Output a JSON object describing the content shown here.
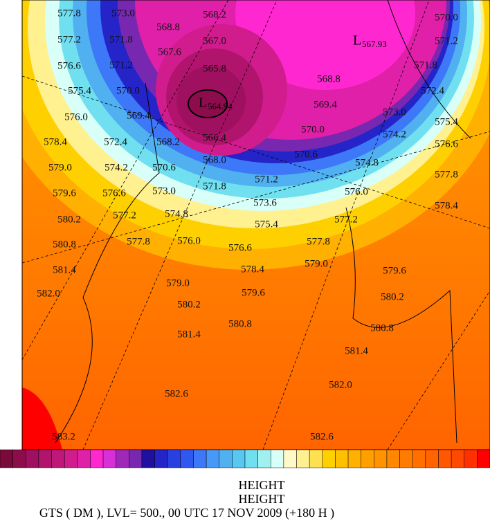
{
  "map": {
    "contour_labels": [
      "577.8",
      "573.0",
      "568.2",
      "570.0",
      "577.2",
      "571.8",
      "568.8",
      "567.0",
      "571.2",
      "576.6",
      "571.2",
      "567.6",
      "565.8",
      "571.8",
      "575.4",
      "570.0",
      "568.8",
      "572.4",
      "576.0",
      "569.4",
      "569.4",
      "573.0",
      "575.4",
      "578.4",
      "572.4",
      "568.2",
      "566.4",
      "570.0",
      "574.2",
      "576.6",
      "579.0",
      "574.2",
      "570.6",
      "568.0",
      "570.6",
      "574.8",
      "577.8",
      "579.6",
      "576.6",
      "573.0",
      "571.8",
      "571.2",
      "576.0",
      "578.4",
      "580.2",
      "577.2",
      "574.8",
      "573.6",
      "575.4",
      "577.2",
      "580.8",
      "577.8",
      "576.0",
      "576.6",
      "577.8",
      "581.4",
      "578.4",
      "579.0",
      "579.6",
      "582.0",
      "579.0",
      "579.6",
      "580.2",
      "580.2",
      "580.8",
      "580.8",
      "581.4",
      "581.4",
      "582.0",
      "582.6",
      "583.2",
      "582.6"
    ],
    "lows": [
      {
        "symbol": "L",
        "value": "567.93"
      },
      {
        "symbol": "L",
        "value": "564.94"
      }
    ],
    "colorbar": [
      "#7a0a3a",
      "#8c0c4c",
      "#a01060",
      "#b0146c",
      "#c01878",
      "#d01c8c",
      "#e020a8",
      "#ff28d0",
      "#d830d8",
      "#a028b8",
      "#7828b0",
      "#2010a0",
      "#2424c8",
      "#2840e0",
      "#3058f0",
      "#3c78f8",
      "#4898f8",
      "#50b0f0",
      "#58c8f0",
      "#70e0f0",
      "#a0f0f0",
      "#d8fff8",
      "#fff8c8",
      "#fff090",
      "#ffe050",
      "#ffd000",
      "#ffc000",
      "#ffb000",
      "#ffa000",
      "#ff9400",
      "#ff8800",
      "#ff7c00",
      "#ff7000",
      "#ff6400",
      "#ff5800",
      "#ff4800",
      "#ff3000",
      "#ff0000"
    ]
  },
  "footer": {
    "line1": "HEIGHT",
    "line2": "HEIGHT",
    "line3": "GTS ( DM ),  LVL= 500., 00 UTC 17 NOV 2009 (+180 H )"
  }
}
